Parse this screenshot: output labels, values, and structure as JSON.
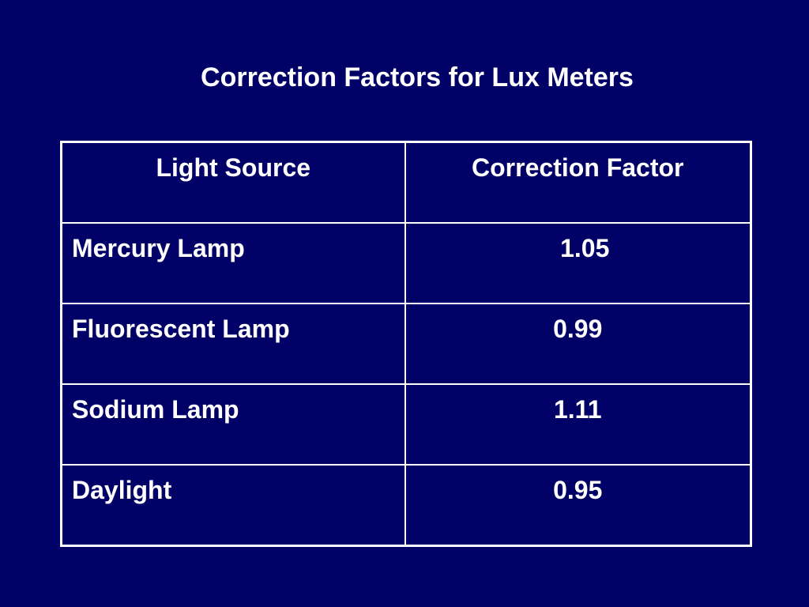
{
  "slide": {
    "title": "Correction Factors for Lux Meters",
    "background_color": "#000066",
    "text_color": "#ffffff"
  },
  "table": {
    "headers": [
      "Light Source",
      "Correction Factor"
    ],
    "rows": [
      {
        "source": "Mercury Lamp",
        "factor": "1.05"
      },
      {
        "source": "Fluorescent Lamp",
        "factor": "0.99"
      },
      {
        "source": "Sodium Lamp",
        "factor": "1.11"
      },
      {
        "source": "Daylight",
        "factor": "0.95"
      }
    ]
  }
}
